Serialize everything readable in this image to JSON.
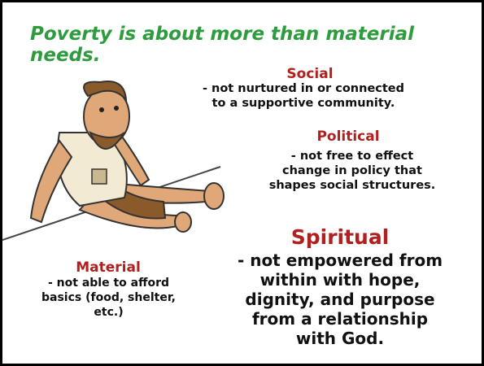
{
  "title": "Poverty is about more than material needs.",
  "sections": [
    {
      "heading": "Social",
      "text": "- not nurtured in or connected to a supportive community."
    },
    {
      "heading": "Political",
      "text": "- not free to effect change in policy that shapes social structures."
    },
    {
      "heading": "Spiritual",
      "text": "- not empowered from within with hope, dignity, and purpose from a relationship with God."
    },
    {
      "heading": "Material",
      "text": "- not able to afford basics (food, shelter, etc.)"
    }
  ]
}
